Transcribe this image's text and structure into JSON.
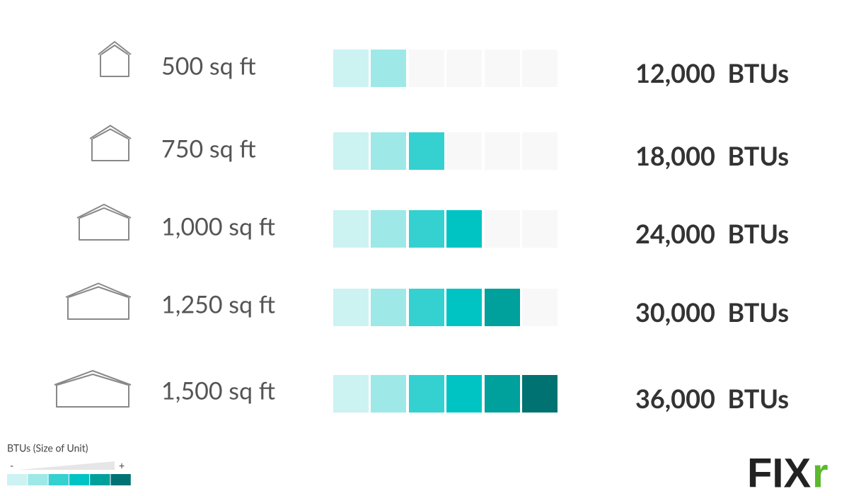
{
  "rows": [
    {
      "area": "500 sq ft",
      "btu": "12,000  BTUs",
      "level": 2
    },
    {
      "area": "750 sq ft",
      "btu": "18,000  BTUs",
      "level": 3
    },
    {
      "area": "1,000 sq ft",
      "btu": "24,000  BTUs",
      "level": 4
    },
    {
      "area": "1,250 sq ft",
      "btu": "30,000  BTUs",
      "level": 5
    },
    {
      "area": "1,500 sq ft",
      "btu": "36,000  BTUs",
      "level": 6
    }
  ],
  "palette": [
    "#cdf2f2",
    "#9ee8e8",
    "#35d0d0",
    "#00c4c4",
    "#00a09c",
    "#007272"
  ],
  "empty_color": "#f8f8f8",
  "legend": {
    "title": "BTUs (Size of Unit)",
    "min_label": "-",
    "max_label": "+"
  },
  "logo": {
    "text": "FIX",
    "accent": "r"
  }
}
